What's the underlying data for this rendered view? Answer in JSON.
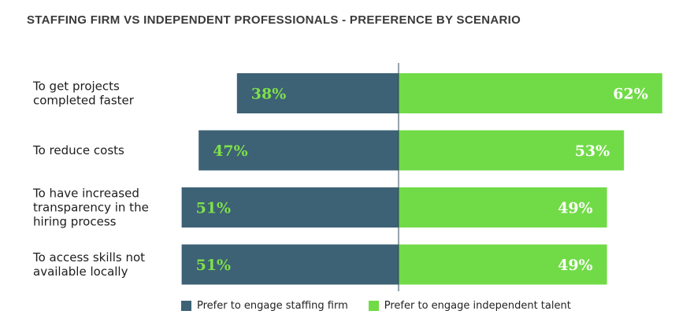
{
  "chart_data": {
    "type": "bar",
    "orientation": "horizontal-diverging",
    "title": "STAFFING FIRM VS INDEPENDENT PROFESSIONALS - PREFERENCE BY SCENARIO",
    "categories": [
      [
        "To get projects",
        "completed faster"
      ],
      [
        "To reduce costs"
      ],
      [
        "To have increased",
        "transparency in the",
        "hiring process"
      ],
      [
        "To access skills not",
        "available locally"
      ]
    ],
    "series": [
      {
        "name": "Prefer to engage staffing firm",
        "color": "#3d6175",
        "values": [
          38,
          47,
          51,
          51
        ],
        "labels": [
          "38%",
          "47%",
          "51%",
          "51%"
        ],
        "label_color": "#7ee04a"
      },
      {
        "name": "Prefer to engage independent talent",
        "color": "#71db47",
        "values": [
          62,
          53,
          49,
          49
        ],
        "labels": [
          "62%",
          "53%",
          "49%",
          "49%"
        ],
        "label_color": "#ffffff"
      }
    ],
    "xlim": [
      -51,
      62
    ],
    "unit": "%",
    "legend": "bottom"
  }
}
